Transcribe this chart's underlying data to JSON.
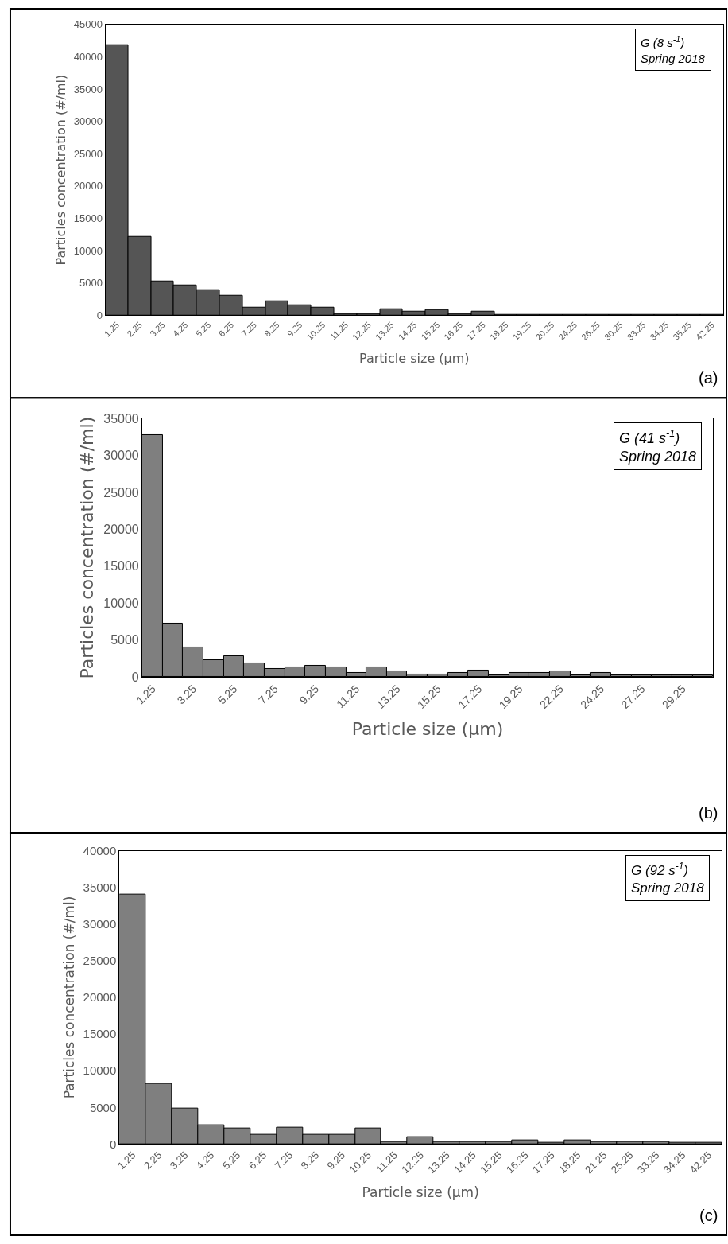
{
  "chart_data": [
    {
      "type": "bar",
      "xlabel": "Particle size (µm)",
      "ylabel": "Particles concentration (#/ml)",
      "annotations": [
        "G (8 s$^{-1}$)\nSpring 2018",
        "(a)"
      ],
      "categories": [
        "1.25",
        "2.25",
        "3.25",
        "4.25",
        "5.25",
        "6.25",
        "7.25",
        "8.25",
        "9.25",
        "10.25",
        "11.25",
        "12.25",
        "13.25",
        "14.25",
        "15.25",
        "16.25",
        "17.25",
        "18.25",
        "19.25",
        "20.25",
        "24.25",
        "26.25",
        "30.25",
        "33.25",
        "34.25",
        "35.25",
        "42.25"
      ],
      "values": [
        41800,
        12200,
        5200,
        4600,
        3900,
        3100,
        1200,
        2200,
        1600,
        1200,
        200,
        200,
        1000,
        600,
        800,
        200,
        600,
        100,
        100,
        100,
        100,
        100,
        100,
        100,
        100,
        100,
        100
      ],
      "color": "#555555",
      "ylim": [
        0,
        45000
      ],
      "yticks": [
        0,
        5000,
        10000,
        15000,
        20000,
        25000,
        30000,
        35000,
        40000,
        45000
      ]
    },
    {
      "type": "bar",
      "xlabel": "Particle size (µm)",
      "ylabel": "Particles concentration (#/ml)",
      "annotations": [
        "G (41 s$^{-1}$)\nSpring 2018",
        "(b)"
      ],
      "categories": [
        "1.25",
        null,
        "3.25",
        null,
        "5.25",
        null,
        "7.25",
        null,
        "9.25",
        null,
        "11.25",
        null,
        "13.25",
        null,
        "15.25",
        null,
        "17.25",
        null,
        "19.25",
        null,
        "22.25",
        null,
        "24.25",
        null,
        "27.25",
        null,
        "29.25",
        null
      ],
      "values": [
        32700,
        7200,
        4000,
        2300,
        2800,
        1800,
        1100,
        1300,
        1500,
        1300,
        600,
        1300,
        800,
        400,
        400,
        600,
        900,
        200,
        600,
        600,
        800,
        200,
        600,
        200,
        200,
        200,
        200,
        200
      ],
      "color": "#7f7f7f",
      "ylim": [
        0,
        35000
      ],
      "yticks": [
        0,
        5000,
        10000,
        15000,
        20000,
        25000,
        30000,
        35000
      ]
    },
    {
      "type": "bar",
      "xlabel": "Particle size (µm)",
      "ylabel": "Particles concentration (#/ml)",
      "annotations": [
        "G (92 s$^{-1}$)\nSpring 2018",
        "(c)"
      ],
      "categories": [
        "1.25",
        "2.25",
        "3.25",
        "4.25",
        "5.25",
        "6.25",
        "7.25",
        "8.25",
        "9.25",
        "10.25",
        "11.25",
        "12.25",
        "13.25",
        "14.25",
        "15.25",
        "16.25",
        "17.25",
        "18.25",
        "21.25",
        "25.25",
        "33.25",
        "34.25",
        "42.25"
      ],
      "values": [
        34000,
        8200,
        4900,
        2600,
        2100,
        1300,
        2300,
        1300,
        1300,
        2100,
        300,
        900,
        300,
        300,
        300,
        500,
        200,
        500,
        300,
        300,
        300,
        200,
        200
      ],
      "color": "#7f7f7f",
      "ylim": [
        0,
        40000
      ],
      "yticks": [
        0,
        5000,
        10000,
        15000,
        20000,
        25000,
        30000,
        35000,
        40000
      ]
    }
  ]
}
